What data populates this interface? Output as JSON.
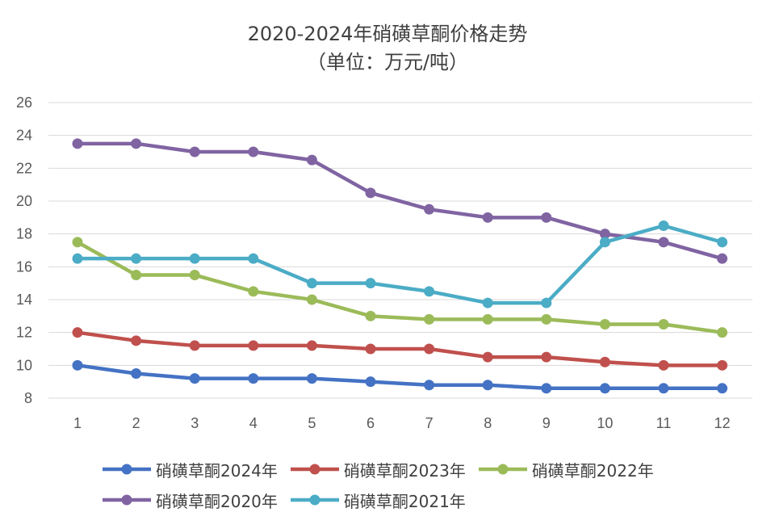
{
  "chart_data": {
    "type": "line",
    "title": "2020-2024年硝磺草酮价格走势",
    "subtitle": "（单位：万元/吨）",
    "xlabel": "",
    "ylabel": "",
    "categories": [
      "1",
      "2",
      "3",
      "4",
      "5",
      "6",
      "7",
      "8",
      "9",
      "10",
      "11",
      "12"
    ],
    "ylim": [
      8,
      26
    ],
    "yticks": [
      "8",
      "10",
      "12",
      "14",
      "16",
      "18",
      "20",
      "22",
      "24",
      "26"
    ],
    "grid": true,
    "legend_position": "bottom",
    "series": [
      {
        "name": "硝磺草酮2024年",
        "color": "#4472C4",
        "values": [
          10,
          9.5,
          9.2,
          9.2,
          9.2,
          9.0,
          8.8,
          8.8,
          8.6,
          8.6,
          8.6,
          8.6
        ]
      },
      {
        "name": "硝磺草酮2023年",
        "color": "#C0504D",
        "values": [
          12,
          11.5,
          11.2,
          11.2,
          11.2,
          11.0,
          11.0,
          10.5,
          10.5,
          10.2,
          10.0,
          10.0
        ]
      },
      {
        "name": "硝磺草酮2022年",
        "color": "#9BBB59",
        "values": [
          17.5,
          15.5,
          15.5,
          14.5,
          14.0,
          13.0,
          12.8,
          12.8,
          12.8,
          12.5,
          12.5,
          12.0
        ]
      },
      {
        "name": "硝磺草酮2020年",
        "color": "#8064A2",
        "values": [
          23.5,
          23.5,
          23.0,
          23.0,
          22.5,
          20.5,
          19.5,
          19.0,
          19.0,
          18.0,
          17.5,
          16.5
        ]
      },
      {
        "name": "硝磺草酮2021年",
        "color": "#4BACC6",
        "values": [
          16.5,
          16.5,
          16.5,
          16.5,
          15.0,
          15.0,
          14.5,
          13.8,
          13.8,
          17.5,
          18.5,
          17.5
        ]
      }
    ],
    "legend_rows": [
      [
        0,
        1,
        2
      ],
      [
        3,
        4
      ]
    ]
  }
}
